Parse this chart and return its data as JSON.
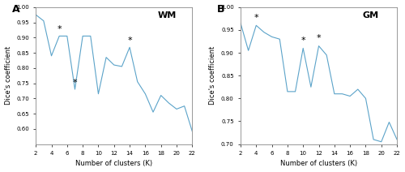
{
  "wm": {
    "x": [
      2,
      3,
      4,
      5,
      6,
      7,
      8,
      9,
      10,
      11,
      12,
      13,
      14,
      15,
      16,
      17,
      18,
      19,
      20,
      21,
      22
    ],
    "y": [
      0.975,
      0.955,
      0.84,
      0.905,
      0.905,
      0.73,
      0.905,
      0.905,
      0.715,
      0.835,
      0.81,
      0.805,
      0.868,
      0.755,
      0.715,
      0.655,
      0.71,
      0.685,
      0.665,
      0.675,
      0.592
    ],
    "stars": [
      5,
      7,
      14
    ],
    "label": "WM",
    "ylim": [
      0.55,
      1.0
    ],
    "yticks": [
      0.6,
      0.65,
      0.7,
      0.75,
      0.8,
      0.85,
      0.9,
      0.95,
      1.0
    ]
  },
  "gm": {
    "x": [
      2,
      3,
      4,
      5,
      6,
      7,
      8,
      9,
      10,
      11,
      12,
      13,
      14,
      15,
      16,
      17,
      18,
      19,
      20,
      21,
      22
    ],
    "y": [
      0.965,
      0.905,
      0.96,
      0.945,
      0.935,
      0.93,
      0.815,
      0.815,
      0.91,
      0.825,
      0.915,
      0.895,
      0.81,
      0.81,
      0.805,
      0.82,
      0.8,
      0.71,
      0.705,
      0.748,
      0.71
    ],
    "stars": [
      4,
      10,
      12
    ],
    "label": "GM",
    "ylim": [
      0.7,
      1.0
    ],
    "yticks": [
      0.7,
      0.75,
      0.8,
      0.85,
      0.9,
      0.95,
      1.0
    ]
  },
  "line_color": "#5ba3c9",
  "star_color": "black",
  "xlabel": "Number of clusters (K)",
  "ylabel": "Dice's coefficient",
  "xticks": [
    2,
    4,
    6,
    8,
    10,
    12,
    14,
    16,
    18,
    20,
    22
  ],
  "bg_color": "#ffffff",
  "panel_labels": [
    "A",
    "B"
  ],
  "label_fontsize": 8,
  "tick_fontsize": 5,
  "axis_label_fontsize": 6,
  "panel_label_fontsize": 9,
  "inner_label_fontsize": 8
}
